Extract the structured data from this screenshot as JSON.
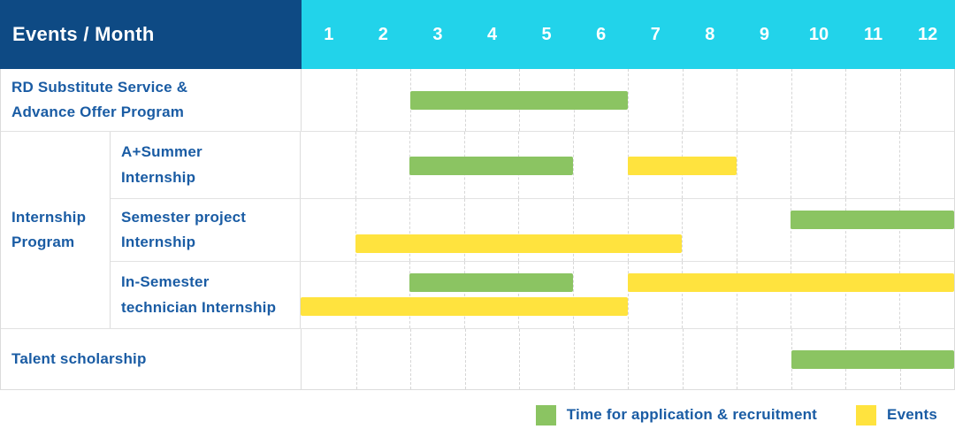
{
  "header": {
    "events_month_label": "Events / Month",
    "months": [
      "1",
      "2",
      "3",
      "4",
      "5",
      "6",
      "7",
      "8",
      "9",
      "10",
      "11",
      "12"
    ]
  },
  "row_labels": {
    "rd_substitute": {
      "line1": "RD Substitute Service &",
      "line2": "Advance Offer Program"
    },
    "internship_group": {
      "line1": "Internship",
      "line2": "Program"
    },
    "a_summer": {
      "line1": "A+Summer",
      "line2": "Internship"
    },
    "semester_project": {
      "line1": "Semester project",
      "line2": "Internship"
    },
    "in_semester": {
      "line1": "In-Semester",
      "line2": "technician Internship"
    },
    "talent_scholarship": {
      "line1": "Talent scholarship"
    }
  },
  "legend": {
    "application_label": "Time for application & recruitment",
    "events_label": "Events"
  },
  "colors": {
    "header_navy": "#0E4A84",
    "header_cyan": "#22D3EA",
    "application_green": "#8BC462",
    "events_yellow": "#FFE33E",
    "label_blue": "#1A5CA4",
    "grid_gray": "#DCDCDC"
  },
  "chart_data": {
    "type": "table",
    "subtype": "gantt",
    "title": "Events / Month",
    "x_axis": {
      "label": "Month",
      "ticks": [
        "1",
        "2",
        "3",
        "4",
        "5",
        "6",
        "7",
        "8",
        "9",
        "10",
        "11",
        "12"
      ],
      "range": [
        1,
        12
      ]
    },
    "legend": [
      {
        "series": "application",
        "label": "Time for application & recruitment",
        "color": "#8BC462"
      },
      {
        "series": "events",
        "label": "Events",
        "color": "#FFE33E"
      }
    ],
    "legend_position": "bottom-right",
    "grid": "dashed-vertical",
    "rows": [
      {
        "label": "RD Substitute Service & Advance Offer Program",
        "group": null,
        "bars": [
          {
            "series": "application",
            "start_month": 3,
            "end_month": 6,
            "lane": "single"
          }
        ]
      },
      {
        "label": "A+Summer Internship",
        "group": "Internship Program",
        "bars": [
          {
            "series": "application",
            "start_month": 3,
            "end_month": 5,
            "lane": "single"
          },
          {
            "series": "events",
            "start_month": 7,
            "end_month": 8,
            "lane": "single"
          }
        ]
      },
      {
        "label": "Semester project Internship",
        "group": "Internship Program",
        "bars": [
          {
            "series": "application",
            "start_month": 10,
            "end_month": 12,
            "lane": "top"
          },
          {
            "series": "events",
            "start_month": 2,
            "end_month": 7,
            "lane": "bottom"
          }
        ]
      },
      {
        "label": "In-Semester technician Internship",
        "group": "Internship Program",
        "bars": [
          {
            "series": "application",
            "start_month": 3,
            "end_month": 5,
            "lane": "top"
          },
          {
            "series": "events",
            "start_month": 7,
            "end_month": 12,
            "lane": "top"
          },
          {
            "series": "events",
            "start_month": 1,
            "end_month": 6,
            "lane": "bottom"
          }
        ]
      },
      {
        "label": "Talent scholarship",
        "group": null,
        "bars": [
          {
            "series": "application",
            "start_month": 10,
            "end_month": 12,
            "lane": "single"
          }
        ]
      }
    ]
  }
}
